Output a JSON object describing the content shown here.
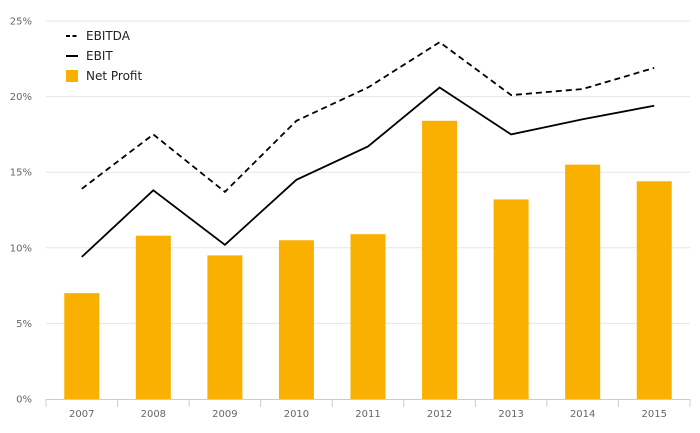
{
  "chart_data": {
    "type": "bar",
    "categories": [
      "2007",
      "2008",
      "2009",
      "2010",
      "2011",
      "2012",
      "2013",
      "2014",
      "2015"
    ],
    "ylim": [
      0,
      25
    ],
    "y_ticks": [
      "0%",
      "5%",
      "10%",
      "15%",
      "20%",
      "25%"
    ],
    "grid": true,
    "legend_position": "top-left",
    "series": [
      {
        "name": "EBITDA",
        "type": "line",
        "style": "dashed",
        "color": "#000000",
        "values": [
          13.9,
          17.5,
          13.7,
          18.4,
          20.6,
          23.6,
          20.1,
          20.5,
          21.9
        ]
      },
      {
        "name": "EBIT",
        "type": "line",
        "style": "solid",
        "color": "#000000",
        "values": [
          9.4,
          13.8,
          10.2,
          14.5,
          16.7,
          20.6,
          17.5,
          18.5,
          19.4
        ]
      },
      {
        "name": "Net Profit",
        "type": "bar",
        "color": "#f9b000",
        "values": [
          7.0,
          10.8,
          9.5,
          10.5,
          10.9,
          18.4,
          13.2,
          15.5,
          14.4
        ]
      }
    ]
  }
}
